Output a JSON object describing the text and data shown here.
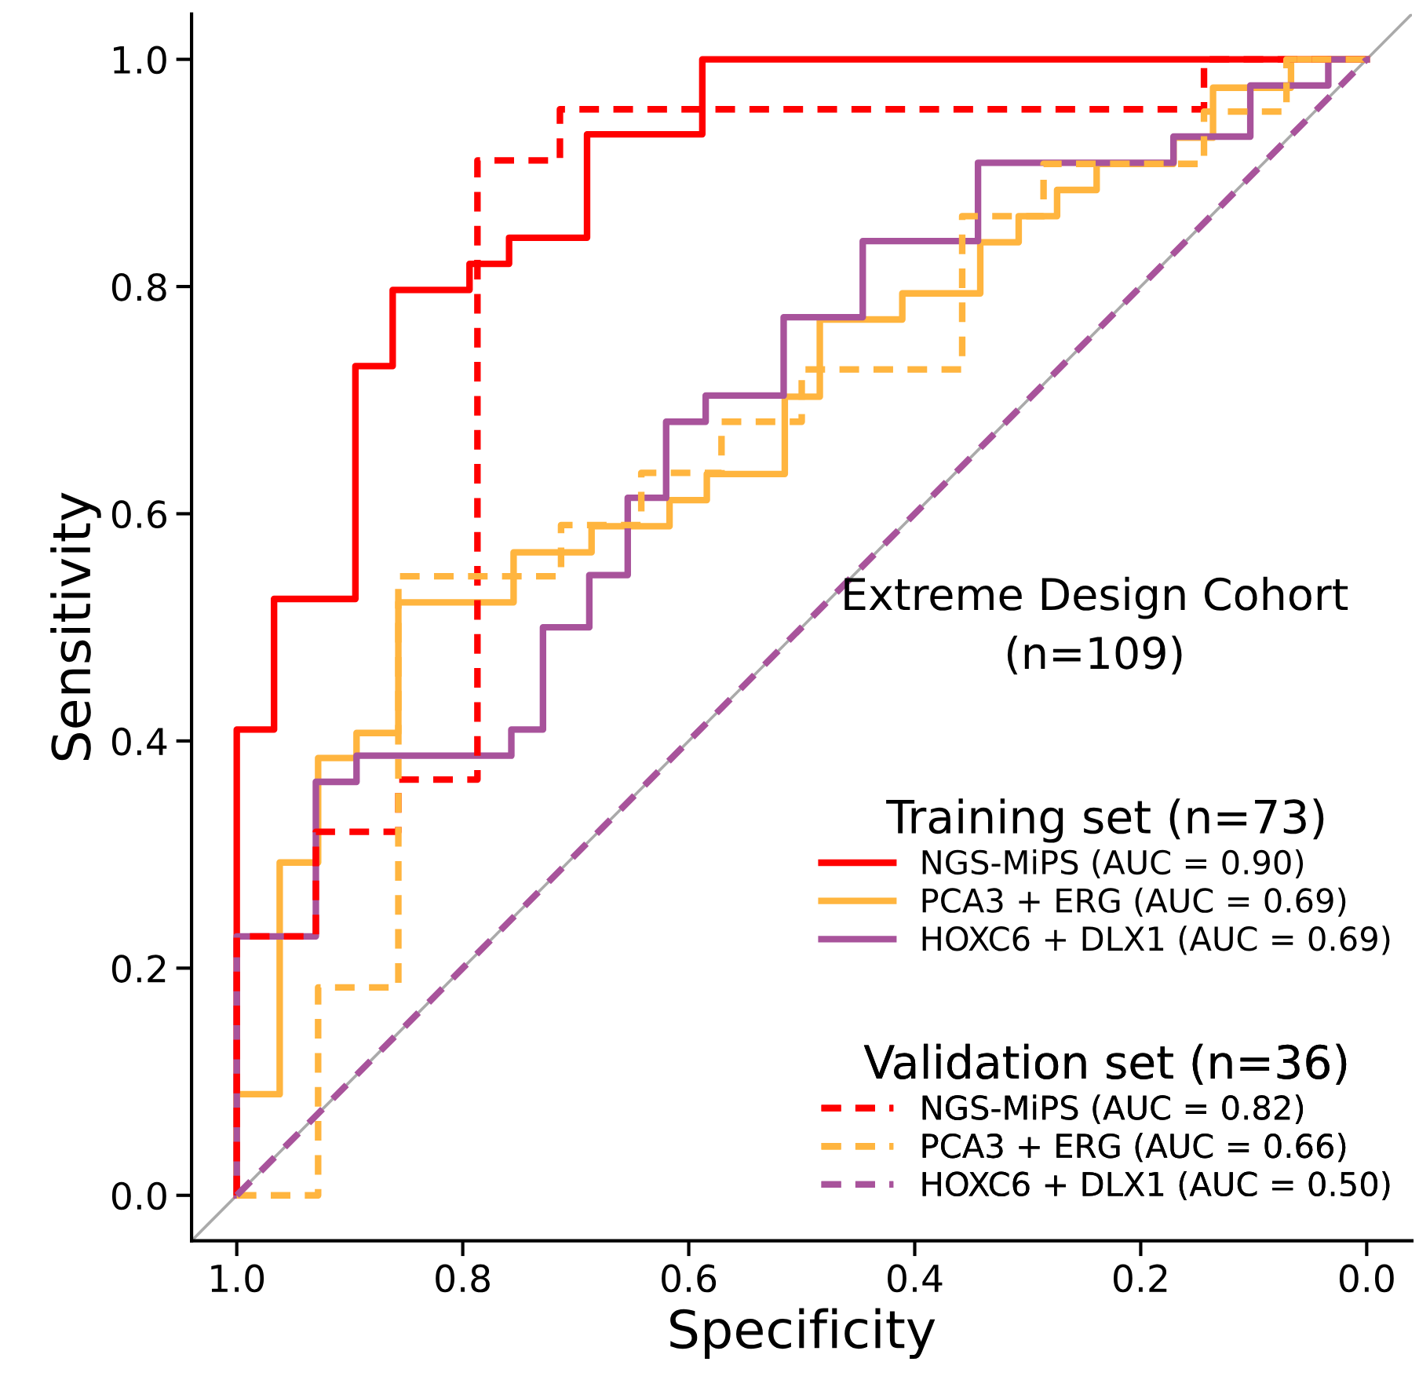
{
  "chart_data": {
    "type": "line",
    "xlabel": "Specificity",
    "ylabel": "Sensitivity",
    "xlim": [
      1.04,
      -0.04
    ],
    "ylim": [
      -0.04,
      1.04
    ],
    "xticks": [
      {
        "value": 1.0,
        "label": "1.0"
      },
      {
        "value": 0.8,
        "label": "0.8"
      },
      {
        "value": 0.6,
        "label": "0.6"
      },
      {
        "value": 0.4,
        "label": "0.4"
      },
      {
        "value": 0.2,
        "label": "0.2"
      },
      {
        "value": 0.0,
        "label": "0.0"
      }
    ],
    "yticks": [
      {
        "value": 0.0,
        "label": "0.0"
      },
      {
        "value": 0.2,
        "label": "0.2"
      },
      {
        "value": 0.4,
        "label": "0.4"
      },
      {
        "value": 0.6,
        "label": "0.6"
      },
      {
        "value": 0.8,
        "label": "0.8"
      },
      {
        "value": 1.0,
        "label": "1.0"
      }
    ],
    "grid": false,
    "legend": "bottom right",
    "marker": "none",
    "legend_title": [
      "Training set (n=73)",
      "Validation set (n=36)"
    ],
    "annotations": [
      "Extreme Design Cohort\n(n=109)"
    ],
    "series": [
      {
        "color": "#aaaaaa",
        "line_style": "solid",
        "x": [
          1.04,
          -0.04
        ],
        "values": [
          -0.04,
          1.04
        ]
      },
      {
        "name": "NGS-MiPS (AUC = 0.90)",
        "color": "#ff0000",
        "line_style": "solid",
        "x": [
          1,
          1,
          0.967,
          0.967,
          0.895,
          0.895,
          0.862,
          0.862,
          0.794,
          0.794,
          0.759,
          0.759,
          0.69,
          0.69,
          0.588,
          0.588,
          0
        ],
        "values": [
          0,
          0.41,
          0.41,
          0.525,
          0.525,
          0.73,
          0.73,
          0.797,
          0.797,
          0.82,
          0.82,
          0.843,
          0.843,
          0.934,
          0.934,
          1.0,
          1.0
        ]
      },
      {
        "name": "PCA3 + ERG (AUC = 0.69)",
        "color": "#ffb53f",
        "line_style": "solid",
        "x": [
          1,
          1,
          0.962,
          0.962,
          0.928,
          0.928,
          0.894,
          0.894,
          0.857,
          0.857,
          0.755,
          0.755,
          0.686,
          0.686,
          0.617,
          0.617,
          0.584,
          0.584,
          0.515,
          0.515,
          0.484,
          0.484,
          0.411,
          0.411,
          0.342,
          0.342,
          0.308,
          0.308,
          0.274,
          0.274,
          0.239,
          0.239,
          0.171,
          0.171,
          0.136,
          0.136,
          0.067,
          0.067,
          0
        ],
        "values": [
          0,
          0.089,
          0.089,
          0.293,
          0.293,
          0.385,
          0.385,
          0.407,
          0.407,
          0.522,
          0.522,
          0.566,
          0.566,
          0.589,
          0.589,
          0.612,
          0.612,
          0.635,
          0.635,
          0.703,
          0.703,
          0.771,
          0.771,
          0.794,
          0.794,
          0.839,
          0.839,
          0.862,
          0.862,
          0.885,
          0.885,
          0.908,
          0.908,
          0.931,
          0.931,
          0.975,
          0.975,
          1.0,
          1.0
        ]
      },
      {
        "name": "HOXC6 + DLX1 (AUC = 0.69)",
        "color": "#a8539b",
        "line_style": "solid",
        "x": [
          1,
          1,
          0.93,
          0.93,
          0.894,
          0.894,
          0.757,
          0.757,
          0.729,
          0.729,
          0.688,
          0.688,
          0.654,
          0.654,
          0.62,
          0.62,
          0.585,
          0.585,
          0.516,
          0.516,
          0.446,
          0.446,
          0.344,
          0.344,
          0.171,
          0.171,
          0.103,
          0.103,
          0.034,
          0.034,
          0
        ],
        "values": [
          0,
          0.228,
          0.228,
          0.364,
          0.364,
          0.387,
          0.387,
          0.41,
          0.41,
          0.5,
          0.5,
          0.546,
          0.546,
          0.614,
          0.614,
          0.681,
          0.681,
          0.704,
          0.704,
          0.773,
          0.773,
          0.84,
          0.84,
          0.909,
          0.909,
          0.932,
          0.932,
          0.977,
          0.977,
          1.0,
          1.0
        ]
      },
      {
        "name": "NGS-MiPS (AUC = 0.82)",
        "color": "#ff0000",
        "line_style": "dashed",
        "x": [
          1,
          1,
          0.93,
          0.93,
          0.857,
          0.857,
          0.787,
          0.787,
          0.714,
          0.714,
          0.144,
          0.144,
          0
        ],
        "values": [
          0,
          0.228,
          0.228,
          0.32,
          0.32,
          0.366,
          0.366,
          0.911,
          0.911,
          0.956,
          0.956,
          1.0,
          1.0
        ]
      },
      {
        "name": "PCA3 + ERG (AUC = 0.66)",
        "color": "#ffb53f",
        "line_style": "dashed",
        "x": [
          1,
          0.928,
          0.928,
          0.857,
          0.857,
          0.713,
          0.713,
          0.642,
          0.642,
          0.571,
          0.571,
          0.5,
          0.5,
          0.358,
          0.358,
          0.286,
          0.286,
          0.144,
          0.144,
          0.071,
          0.071,
          0
        ],
        "values": [
          0,
          0,
          0.183,
          0.183,
          0.545,
          0.545,
          0.59,
          0.59,
          0.636,
          0.636,
          0.681,
          0.681,
          0.727,
          0.727,
          0.862,
          0.862,
          0.908,
          0.908,
          0.954,
          0.954,
          1.0,
          1.0
        ]
      },
      {
        "name": "HOXC6 + DLX1 (AUC = 0.50)",
        "color": "#a8539b",
        "line_style": "dashed",
        "x": [
          1,
          0
        ],
        "values": [
          0,
          1
        ]
      }
    ]
  }
}
